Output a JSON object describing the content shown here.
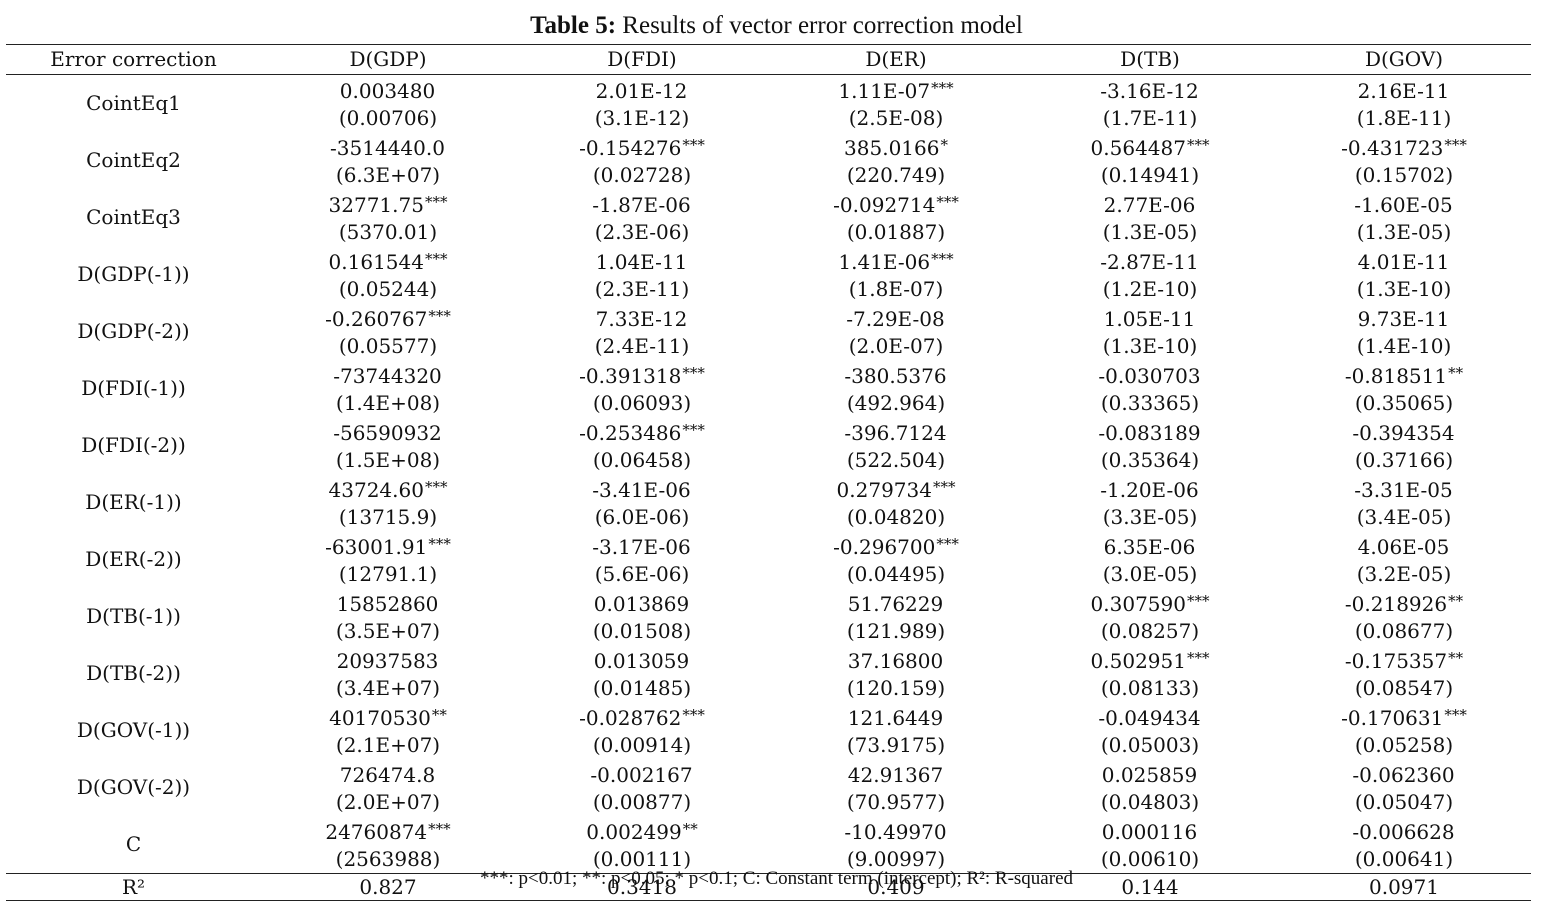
{
  "caption": {
    "label": "Table 5:",
    "text": "Results of vector error correction model"
  },
  "columns": [
    "Error correction",
    "D(GDP)",
    "D(FDI)",
    "D(ER)",
    "D(TB)",
    "D(GOV)"
  ],
  "rows": [
    {
      "name": "CointEq1",
      "coef": [
        [
          "0.003480",
          ""
        ],
        [
          "2.01E-12",
          ""
        ],
        [
          "1.11E-07",
          "***"
        ],
        [
          "-3.16E-12",
          ""
        ],
        [
          "2.16E-11",
          ""
        ]
      ],
      "se": [
        "(0.00706)",
        "(3.1E-12)",
        "(2.5E-08)",
        "(1.7E-11)",
        "(1.8E-11)"
      ]
    },
    {
      "name": "CointEq2",
      "coef": [
        [
          "-3514440.0",
          ""
        ],
        [
          "-0.154276",
          "***"
        ],
        [
          "385.0166",
          "*"
        ],
        [
          "0.564487",
          "***"
        ],
        [
          "-0.431723",
          "***"
        ]
      ],
      "se": [
        "(6.3E+07)",
        "(0.02728)",
        "(220.749)",
        "(0.14941)",
        "(0.15702)"
      ]
    },
    {
      "name": "CointEq3",
      "coef": [
        [
          "32771.75",
          "***"
        ],
        [
          "-1.87E-06",
          ""
        ],
        [
          "-0.092714",
          "***"
        ],
        [
          "2.77E-06",
          ""
        ],
        [
          "-1.60E-05",
          ""
        ]
      ],
      "se": [
        "(5370.01)",
        "(2.3E-06)",
        "(0.01887)",
        "(1.3E-05)",
        "(1.3E-05)"
      ]
    },
    {
      "name": "D(GDP(-1))",
      "coef": [
        [
          "0.161544",
          "***"
        ],
        [
          "1.04E-11",
          ""
        ],
        [
          "1.41E-06",
          "***"
        ],
        [
          "-2.87E-11",
          ""
        ],
        [
          "4.01E-11",
          ""
        ]
      ],
      "se": [
        "(0.05244)",
        "(2.3E-11)",
        "(1.8E-07)",
        "(1.2E-10)",
        "(1.3E-10)"
      ]
    },
    {
      "name": "D(GDP(-2))",
      "coef": [
        [
          "-0.260767",
          "***"
        ],
        [
          "7.33E-12",
          ""
        ],
        [
          "-7.29E-08",
          ""
        ],
        [
          "1.05E-11",
          ""
        ],
        [
          "9.73E-11",
          ""
        ]
      ],
      "se": [
        "(0.05577)",
        "(2.4E-11)",
        "(2.0E-07)",
        "(1.3E-10)",
        "(1.4E-10)"
      ]
    },
    {
      "name": "D(FDI(-1))",
      "coef": [
        [
          "-73744320",
          ""
        ],
        [
          "-0.391318",
          "***"
        ],
        [
          "-380.5376",
          ""
        ],
        [
          "-0.030703",
          ""
        ],
        [
          "-0.818511",
          "**"
        ]
      ],
      "se": [
        "(1.4E+08)",
        "(0.06093)",
        "(492.964)",
        "(0.33365)",
        "(0.35065)"
      ]
    },
    {
      "name": "D(FDI(-2))",
      "coef": [
        [
          "-56590932",
          ""
        ],
        [
          "-0.253486",
          "***"
        ],
        [
          "-396.7124",
          ""
        ],
        [
          "-0.083189",
          ""
        ],
        [
          "-0.394354",
          ""
        ]
      ],
      "se": [
        "(1.5E+08)",
        "(0.06458)",
        "(522.504)",
        "(0.35364)",
        "(0.37166)"
      ]
    },
    {
      "name": "D(ER(-1))",
      "coef": [
        [
          "43724.60",
          "***"
        ],
        [
          "-3.41E-06",
          ""
        ],
        [
          "0.279734",
          "***"
        ],
        [
          "-1.20E-06",
          ""
        ],
        [
          "-3.31E-05",
          ""
        ]
      ],
      "se": [
        "(13715.9)",
        "(6.0E-06)",
        "(0.04820)",
        "(3.3E-05)",
        "(3.4E-05)"
      ]
    },
    {
      "name": "D(ER(-2))",
      "coef": [
        [
          "-63001.91",
          "***"
        ],
        [
          "-3.17E-06",
          ""
        ],
        [
          "-0.296700",
          "***"
        ],
        [
          "6.35E-06",
          ""
        ],
        [
          "4.06E-05",
          ""
        ]
      ],
      "se": [
        "(12791.1)",
        "(5.6E-06)",
        "(0.04495)",
        "(3.0E-05)",
        "(3.2E-05)"
      ]
    },
    {
      "name": "D(TB(-1))",
      "coef": [
        [
          "15852860",
          ""
        ],
        [
          "0.013869",
          ""
        ],
        [
          "51.76229",
          ""
        ],
        [
          "0.307590",
          "***"
        ],
        [
          "-0.218926",
          "**"
        ]
      ],
      "se": [
        "(3.5E+07)",
        "(0.01508)",
        "(121.989)",
        "(0.08257)",
        "(0.08677)"
      ]
    },
    {
      "name": "D(TB(-2))",
      "coef": [
        [
          "20937583",
          ""
        ],
        [
          "0.013059",
          ""
        ],
        [
          "37.16800",
          ""
        ],
        [
          "0.502951",
          "***"
        ],
        [
          "-0.175357",
          "**"
        ]
      ],
      "se": [
        "(3.4E+07)",
        "(0.01485)",
        "(120.159)",
        "(0.08133)",
        "(0.08547)"
      ]
    },
    {
      "name": "D(GOV(-1))",
      "coef": [
        [
          "40170530",
          "**"
        ],
        [
          "-0.028762",
          "***"
        ],
        [
          "121.6449",
          ""
        ],
        [
          "-0.049434",
          ""
        ],
        [
          "-0.170631",
          "***"
        ]
      ],
      "se": [
        "(2.1E+07)",
        "(0.00914)",
        "(73.9175)",
        "(0.05003)",
        "(0.05258)"
      ]
    },
    {
      "name": "D(GOV(-2))",
      "coef": [
        [
          "726474.8",
          ""
        ],
        [
          "-0.002167",
          ""
        ],
        [
          "42.91367",
          ""
        ],
        [
          "0.025859",
          ""
        ],
        [
          "-0.062360",
          ""
        ]
      ],
      "se": [
        "(2.0E+07)",
        "(0.00877)",
        "(70.9577)",
        "(0.04803)",
        "(0.05047)"
      ]
    },
    {
      "name": "C",
      "coef": [
        [
          "24760874",
          "***"
        ],
        [
          "0.002499",
          "**"
        ],
        [
          "-10.49970",
          ""
        ],
        [
          "0.000116",
          ""
        ],
        [
          "-0.006628",
          ""
        ]
      ],
      "se": [
        "(2563988)",
        "(0.00111)",
        "(9.00997)",
        "(0.00610)",
        "(0.00641)"
      ]
    }
  ],
  "r2": {
    "label": "R²",
    "values": [
      "0.827",
      "0.3418",
      "0.409",
      "0.144",
      "0.0971"
    ]
  },
  "footnote": "***: p<0.01; **: p<0.05; * p<0.1; C: Constant term (intercept); R²: R-squared"
}
